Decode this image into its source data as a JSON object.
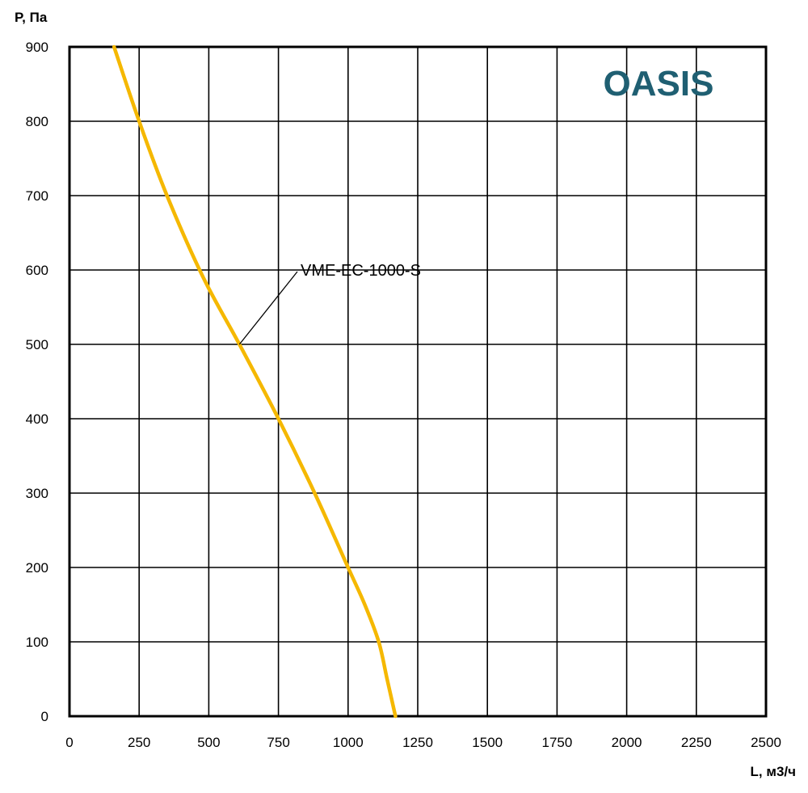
{
  "logo": {
    "text": "OASIS",
    "color": "#1f5f72"
  },
  "chart_data": {
    "type": "line",
    "title": "",
    "xlabel": "L, м3/ч",
    "ylabel": "P, Па",
    "xlim": [
      0,
      2500
    ],
    "ylim": [
      0,
      900
    ],
    "x_ticks": [
      0,
      250,
      500,
      750,
      1000,
      1250,
      1500,
      1750,
      2000,
      2250,
      2500
    ],
    "y_ticks": [
      0,
      100,
      200,
      300,
      400,
      500,
      600,
      700,
      800,
      900
    ],
    "grid": true,
    "series": [
      {
        "name": "VME-EC-1000-S",
        "color": "#f5b800",
        "x": [
          160,
          250,
          350,
          480,
          610,
          750,
          880,
          1000,
          1060,
          1110,
          1140,
          1170
        ],
        "y": [
          900,
          800,
          700,
          590,
          500,
          400,
          300,
          200,
          150,
          100,
          50,
          0
        ]
      }
    ],
    "annotations": [
      {
        "text": "VME-EC-1000-S",
        "points_to": {
          "x": 610,
          "y": 500
        }
      }
    ]
  }
}
